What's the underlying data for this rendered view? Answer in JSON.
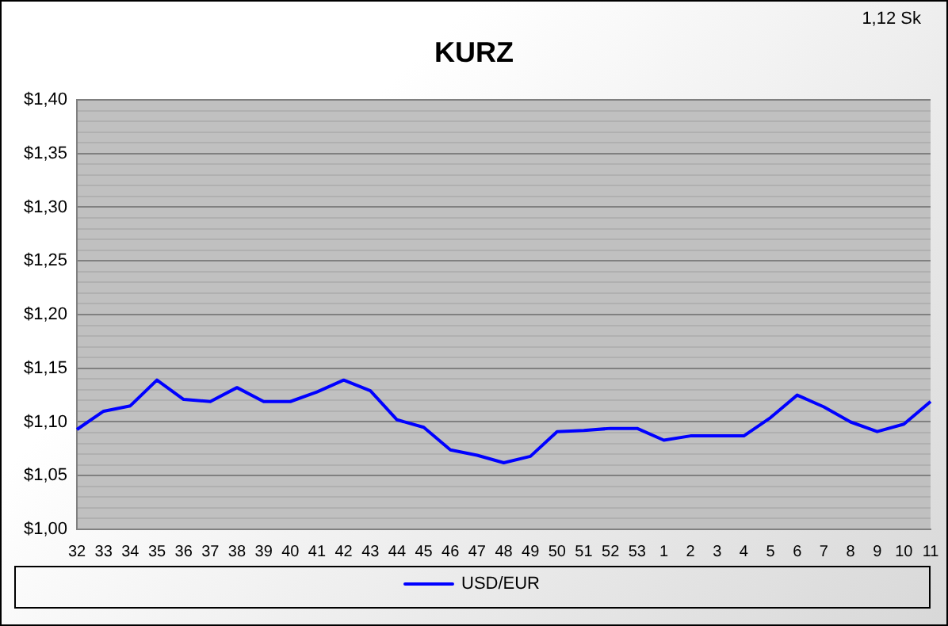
{
  "chart_data": {
    "type": "line",
    "title": "KURZ",
    "categories": [
      "32",
      "33",
      "34",
      "35",
      "36",
      "37",
      "38",
      "39",
      "40",
      "41",
      "42",
      "43",
      "44",
      "45",
      "46",
      "47",
      "48",
      "49",
      "50",
      "51",
      "52",
      "53",
      "1",
      "2",
      "3",
      "4",
      "5",
      "6",
      "7",
      "8",
      "9",
      "10",
      "11"
    ],
    "series": [
      {
        "name": "USD/EUR",
        "color": "#0000ff",
        "values": [
          1.093,
          1.11,
          1.115,
          1.139,
          1.121,
          1.119,
          1.132,
          1.119,
          1.119,
          1.128,
          1.139,
          1.129,
          1.102,
          1.095,
          1.074,
          1.069,
          1.062,
          1.068,
          1.091,
          1.092,
          1.094,
          1.094,
          1.083,
          1.087,
          1.087,
          1.087,
          1.104,
          1.125,
          1.114,
          1.1,
          1.091,
          1.098,
          1.119
        ]
      }
    ],
    "ylim": [
      1.0,
      1.4
    ],
    "yticks": [
      {
        "value": 1.0,
        "label": "$1,00"
      },
      {
        "value": 1.01,
        "label": null
      },
      {
        "value": 1.02,
        "label": null
      },
      {
        "value": 1.03,
        "label": null
      },
      {
        "value": 1.04,
        "label": null
      },
      {
        "value": 1.05,
        "label": "$1,05"
      },
      {
        "value": 1.06,
        "label": null
      },
      {
        "value": 1.07,
        "label": null
      },
      {
        "value": 1.08,
        "label": null
      },
      {
        "value": 1.09,
        "label": null
      },
      {
        "value": 1.1,
        "label": "$1,10"
      },
      {
        "value": 1.11,
        "label": null
      },
      {
        "value": 1.12,
        "label": null
      },
      {
        "value": 1.13,
        "label": null
      },
      {
        "value": 1.14,
        "label": null
      },
      {
        "value": 1.15,
        "label": "$1,15"
      },
      {
        "value": 1.16,
        "label": null
      },
      {
        "value": 1.17,
        "label": null
      },
      {
        "value": 1.18,
        "label": null
      },
      {
        "value": 1.19,
        "label": null
      },
      {
        "value": 1.2,
        "label": "$1,20"
      },
      {
        "value": 1.21,
        "label": null
      },
      {
        "value": 1.22,
        "label": null
      },
      {
        "value": 1.23,
        "label": null
      },
      {
        "value": 1.24,
        "label": null
      },
      {
        "value": 1.25,
        "label": "$1,25"
      },
      {
        "value": 1.26,
        "label": null
      },
      {
        "value": 1.27,
        "label": null
      },
      {
        "value": 1.28,
        "label": null
      },
      {
        "value": 1.29,
        "label": null
      },
      {
        "value": 1.3,
        "label": "$1,30"
      },
      {
        "value": 1.31,
        "label": null
      },
      {
        "value": 1.32,
        "label": null
      },
      {
        "value": 1.33,
        "label": null
      },
      {
        "value": 1.34,
        "label": null
      },
      {
        "value": 1.35,
        "label": "$1,35"
      },
      {
        "value": 1.36,
        "label": null
      },
      {
        "value": 1.37,
        "label": null
      },
      {
        "value": 1.38,
        "label": null
      },
      {
        "value": 1.39,
        "label": null
      },
      {
        "value": 1.4,
        "label": "$1,40"
      }
    ],
    "grid": "y",
    "legend": "bottom",
    "marker": "none",
    "line_style": "solid",
    "annotations": [
      "1,12 Sk"
    ]
  }
}
